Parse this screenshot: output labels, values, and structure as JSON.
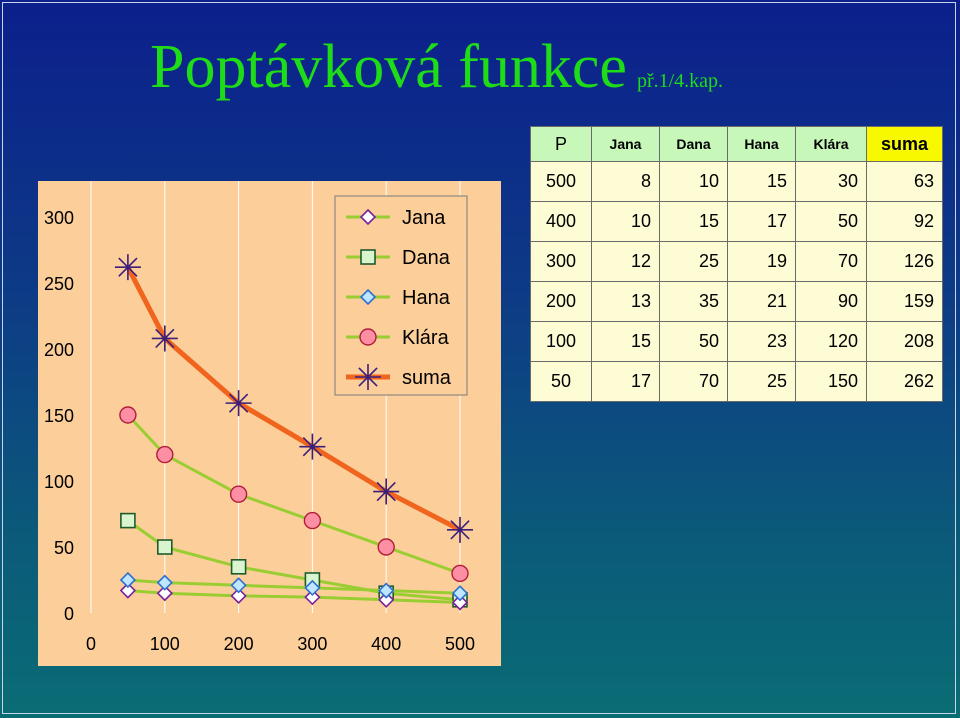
{
  "title": {
    "main": "Poptávková funkce",
    "sub": "př.1/4.kap."
  },
  "table": {
    "headers": [
      "P",
      "Jana",
      "Dana",
      "Hana",
      "Klára",
      "suma"
    ],
    "rows": [
      [
        "500",
        "8",
        "10",
        "15",
        "30",
        "63"
      ],
      [
        "400",
        "10",
        "15",
        "17",
        "50",
        "92"
      ],
      [
        "300",
        "12",
        "25",
        "19",
        "70",
        "126"
      ],
      [
        "200",
        "13",
        "35",
        "21",
        "90",
        "159"
      ],
      [
        "100",
        "15",
        "50",
        "23",
        "120",
        "208"
      ],
      [
        "50",
        "17",
        "70",
        "25",
        "150",
        "262"
      ]
    ]
  },
  "colors": {
    "background_top": "#0c1f8c",
    "background_bottom": "#0a6d74",
    "title": "#1edc17",
    "chart_area": "#fccf9a",
    "series_line": "#9acd32",
    "suma_line": "#f0641e",
    "table_header": "#c7f7b9",
    "table_sum_header": "#f8f800",
    "table_cell": "#fdfcd4"
  },
  "chart_data": {
    "type": "line",
    "title": "",
    "xlabel": "",
    "ylabel": "",
    "xlim": [
      0,
      500
    ],
    "ylim": [
      0,
      300
    ],
    "xticks": [
      0,
      100,
      200,
      300,
      400,
      500
    ],
    "yticks": [
      0,
      50,
      100,
      150,
      200,
      250,
      300
    ],
    "grid": "vertical",
    "legend": "top-right",
    "x": [
      50,
      100,
      200,
      300,
      400,
      500
    ],
    "series": [
      {
        "name": "Jana",
        "marker": "diamond",
        "values": [
          17,
          15,
          13,
          12,
          10,
          8
        ]
      },
      {
        "name": "Dana",
        "marker": "square",
        "values": [
          70,
          50,
          35,
          25,
          15,
          10
        ]
      },
      {
        "name": "Hana",
        "marker": "diamond",
        "values": [
          25,
          23,
          21,
          19,
          17,
          15
        ]
      },
      {
        "name": "Klára",
        "marker": "circle",
        "values": [
          150,
          120,
          90,
          70,
          50,
          30
        ]
      },
      {
        "name": "suma",
        "marker": "star",
        "values": [
          262,
          208,
          159,
          126,
          92,
          63
        ]
      }
    ]
  }
}
